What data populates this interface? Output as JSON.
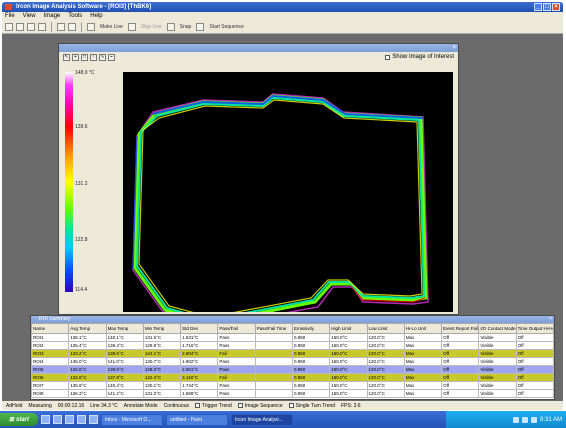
{
  "window": {
    "title": "Ircon Image Analysis Software - [ROI3]   [ThBK6]",
    "minimize_label": "_",
    "maximize_label": "□",
    "close_label": "×"
  },
  "menu": [
    "File",
    "View",
    "Image",
    "Tools",
    "Help"
  ],
  "toolbar": {
    "labels": [
      "Make Live",
      "Stop Live",
      "Snap",
      "Start Sequence"
    ]
  },
  "image_window": {
    "tools": [
      "↖",
      "+",
      "□",
      "○",
      "∿",
      "⌁"
    ],
    "checkbox_label": "Show Image of Interest",
    "close_label": "×"
  },
  "colorbar": {
    "labels": [
      "148.0 °C",
      "139.6",
      "131.2",
      "122.8",
      "114.4"
    ],
    "colors": [
      "#ffffff",
      "#ff3cff",
      "#ff0000",
      "#ffff00",
      "#00e5a0",
      "#0050ff"
    ]
  },
  "roi_summary": {
    "title": "ROI Summary",
    "close_label": "×",
    "columns": [
      "Name",
      "Avg Temp",
      "Max Temp",
      "Min Temp",
      "Std Dev",
      "Pass/Fail",
      "Pass/Fail Time",
      "Emissivity",
      "High Limit",
      "Low Limit",
      "Hi-Lo Unit",
      "Event Report Fail",
      "I/O Contact Mode",
      "Time Output Hi-Hold"
    ],
    "rows": [
      {
        "cells": [
          "ROI1",
          "136.1°C",
          "140.1°C",
          "131.6°C",
          "1.631°C",
          "Pass",
          "",
          "0.950",
          "150.0°C",
          "120.0°C",
          "Max",
          "Off",
          "Visible",
          "Off"
        ],
        "highlight": "none"
      },
      {
        "cells": [
          "ROI2",
          "135.4°C",
          "139.4°C",
          "129.9°C",
          "1.716°C",
          "Pass",
          "",
          "0.950",
          "150.0°C",
          "120.0°C",
          "Max",
          "Off",
          "Visible",
          "Off"
        ],
        "highlight": "none"
      },
      {
        "cells": [
          "ROI3",
          "133.2°C",
          "138.6°C",
          "124.1°C",
          "2.804°C",
          "Fail",
          "",
          "0.950",
          "150.0°C",
          "120.0°C",
          "Max",
          "Off",
          "Visible",
          "Off"
        ],
        "highlight": "yellow"
      },
      {
        "cells": [
          "ROI4",
          "136.0°C",
          "141.0°C",
          "130.7°C",
          "1.902°C",
          "Pass",
          "",
          "0.950",
          "150.0°C",
          "120.0°C",
          "Max",
          "Off",
          "Visible",
          "Off"
        ],
        "highlight": "none"
      },
      {
        "cells": [
          "ROI5",
          "134.6°C",
          "139.6°C",
          "128.3°C",
          "2.001°C",
          "Pass",
          "",
          "0.950",
          "150.0°C",
          "120.0°C",
          "Max",
          "Off",
          "Visible",
          "Off"
        ],
        "highlight": "blue"
      },
      {
        "cells": [
          "ROI6",
          "132.8°C",
          "137.9°C",
          "122.4°C",
          "3.118°C",
          "Fail",
          "",
          "0.950",
          "150.0°C",
          "120.0°C",
          "Max",
          "Off",
          "Visible",
          "Off"
        ],
        "highlight": "yellow"
      },
      {
        "cells": [
          "ROI7",
          "135.9°C",
          "140.4°C",
          "130.1°C",
          "1.744°C",
          "Pass",
          "",
          "0.950",
          "150.0°C",
          "120.0°C",
          "Max",
          "Off",
          "Visible",
          "Off"
        ],
        "highlight": "none"
      },
      {
        "cells": [
          "ROI8",
          "136.3°C",
          "141.2°C",
          "131.0°C",
          "1.689°C",
          "Pass",
          "",
          "0.950",
          "150.0°C",
          "120.0°C",
          "Max",
          "Off",
          "Visible",
          "Off"
        ],
        "highlight": "none"
      }
    ]
  },
  "status_bar": {
    "items": [
      "AdHold",
      "Measuring",
      "00:00:12.16",
      "Line 34.3 °C",
      "Annotate Mode",
      "Continuous"
    ],
    "checkboxes": [
      "Trigger Trend",
      "Image Sequence",
      "Single Turn Trend"
    ],
    "trailing": "FPS: 3.6"
  },
  "taskbar": {
    "start_label": "start",
    "tasks": [
      "Inbox - Microsoft O...",
      "untitled - Paint",
      "Ircon Image Analysi..."
    ],
    "clock": "8:31 AM"
  }
}
